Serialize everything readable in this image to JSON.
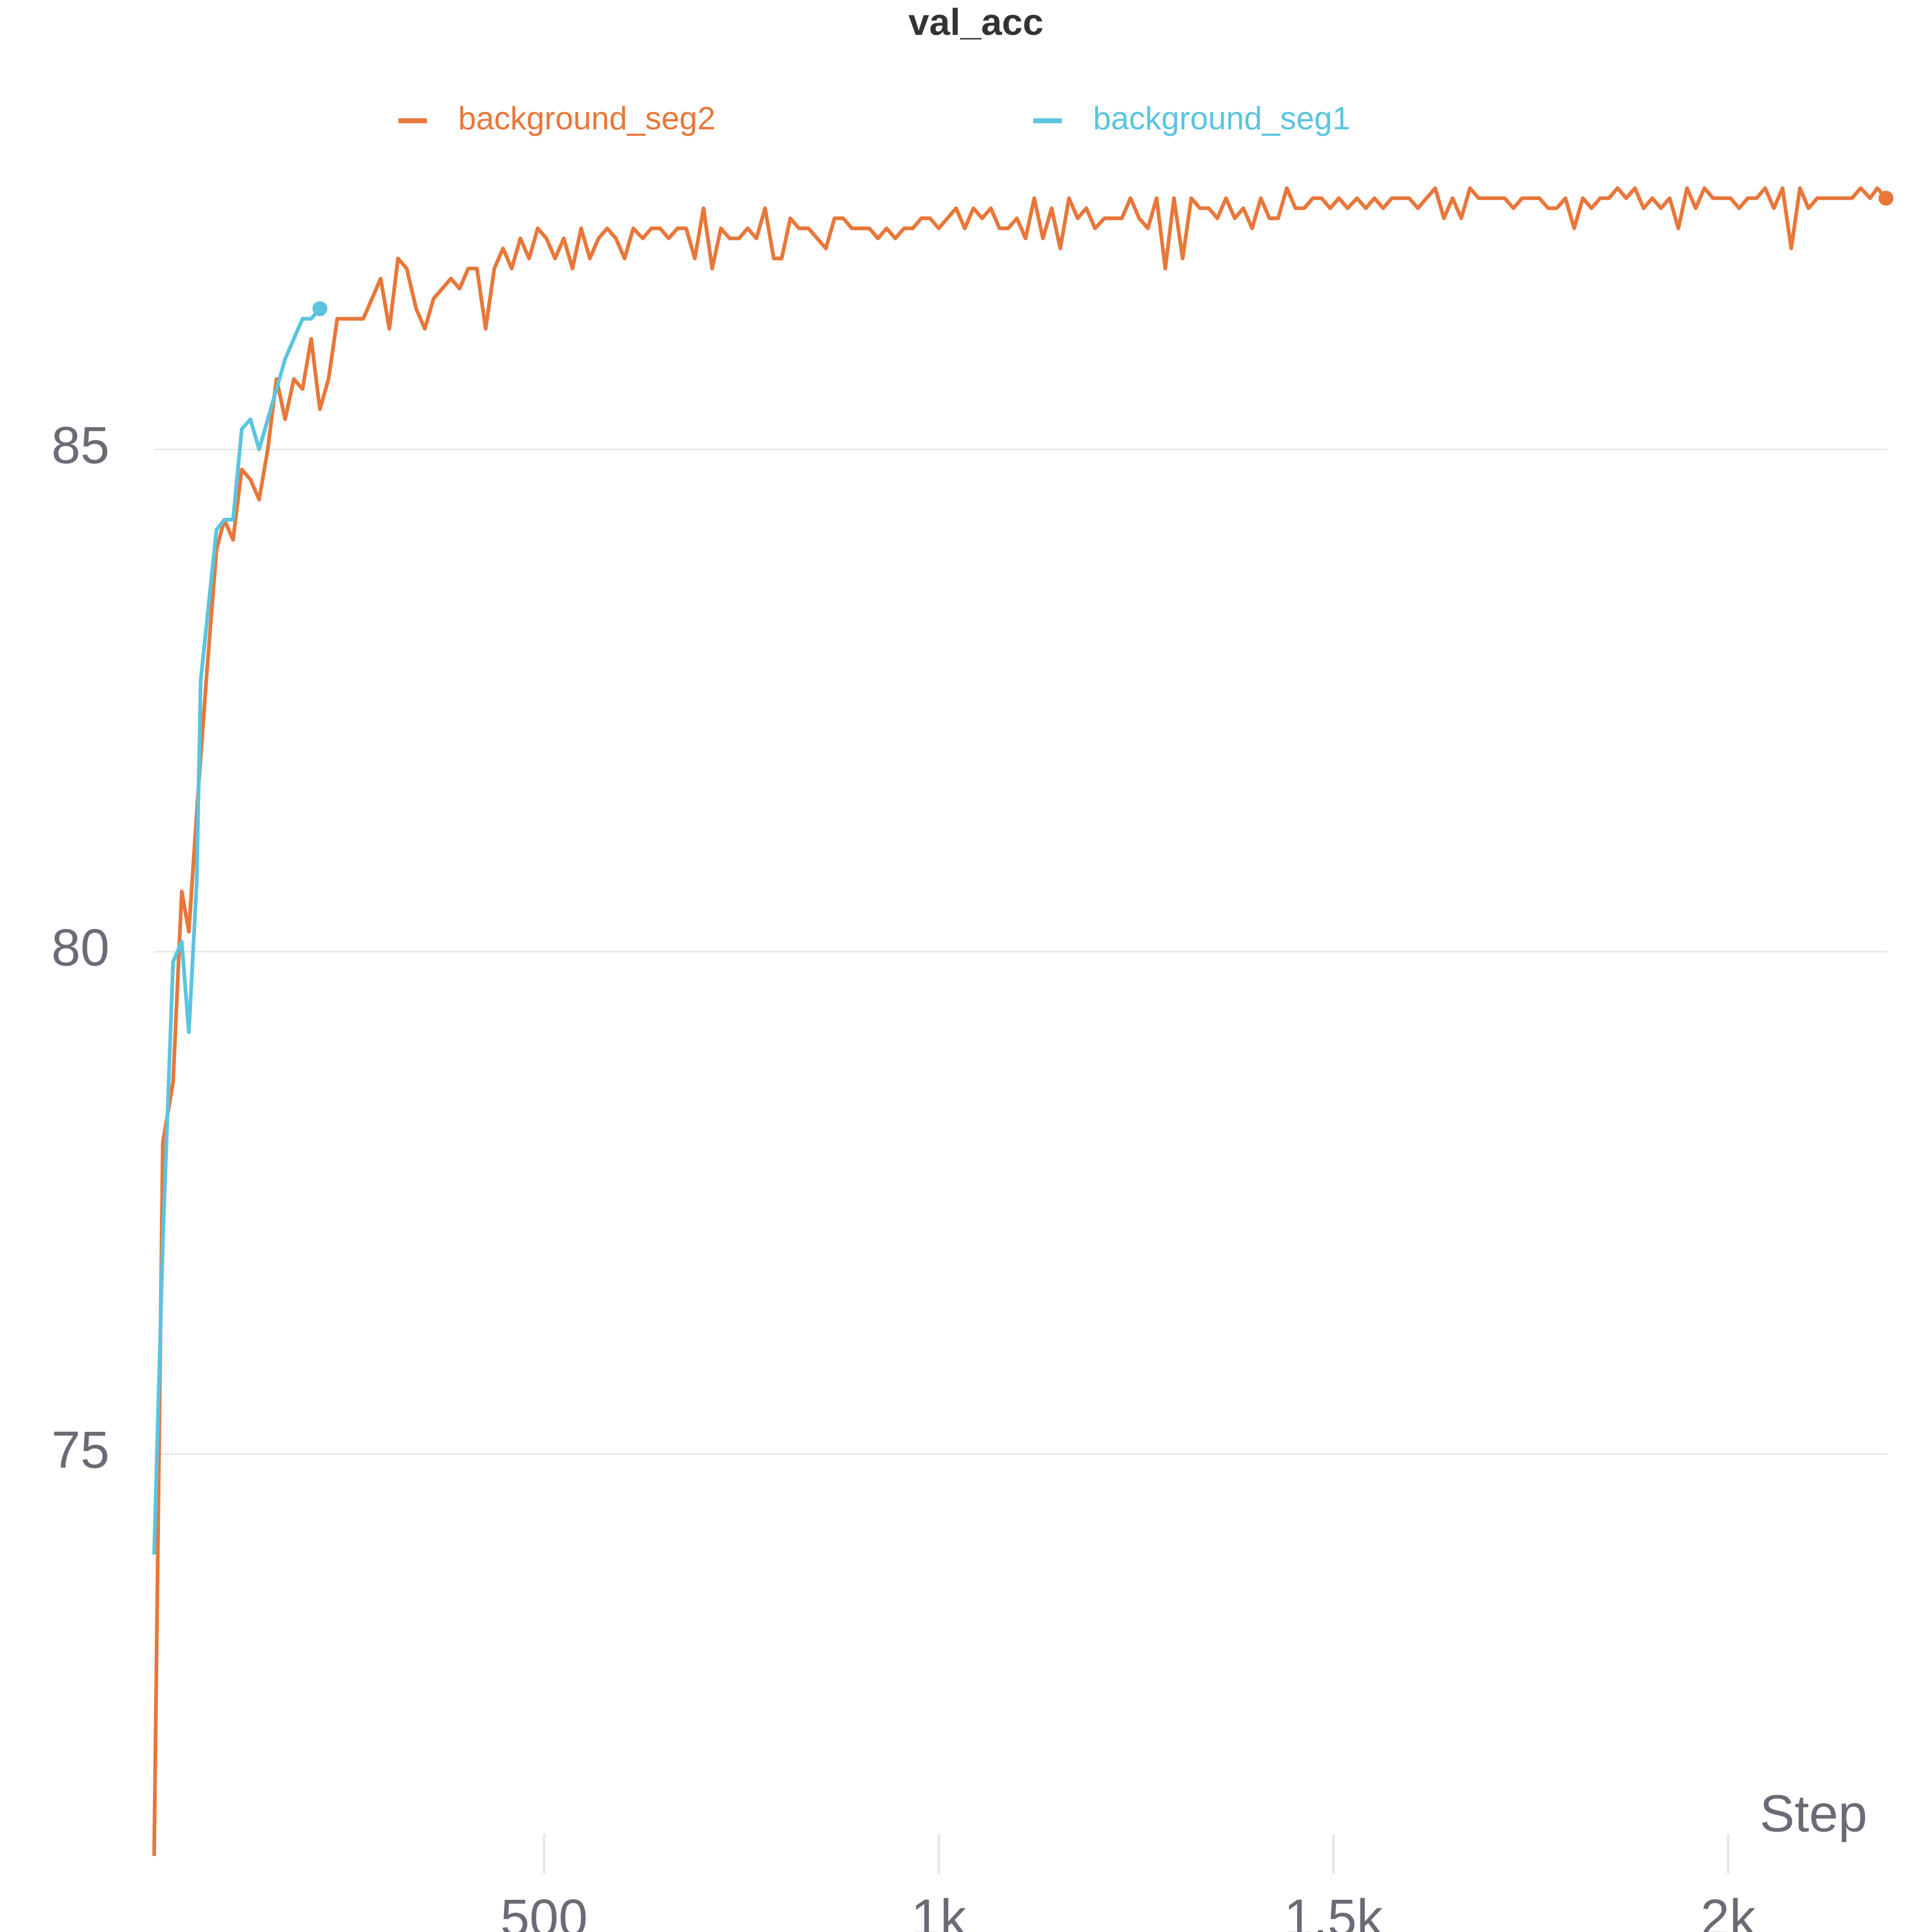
{
  "chart_data": {
    "type": "line",
    "title": "val_acc",
    "x_label": "Step",
    "xlim": [
      0,
      2200
    ],
    "ylim": [
      70.9,
      87.8
    ],
    "xticks": [
      500,
      {
        "value": 1000,
        "label": "1k"
      },
      {
        "value": 1500,
        "label": "1.5k"
      },
      {
        "value": 2000,
        "label": "2k"
      }
    ],
    "yticks": [
      75,
      80,
      85
    ],
    "grid": true,
    "series": [
      {
        "name": "background_seg2",
        "color": "#e8773a",
        "x": [
          6,
          17,
          30,
          41,
          50,
          61,
          73,
          85,
          95,
          106,
          117,
          128,
          139,
          150,
          161,
          172,
          183,
          194,
          205,
          216,
          227,
          238,
          260,
          271,
          282,
          293,
          304,
          315,
          326,
          338,
          349,
          360,
          371,
          382,
          393,
          404,
          415,
          426,
          437,
          448,
          459,
          470,
          481,
          492,
          503,
          514,
          525,
          536,
          547,
          558,
          569,
          580,
          591,
          602,
          613,
          625,
          636,
          647,
          658,
          669,
          680,
          691,
          702,
          713,
          724,
          735,
          747,
          758,
          769,
          780,
          791,
          801,
          812,
          823,
          835,
          846,
          857,
          868,
          879,
          890,
          901,
          912,
          923,
          934,
          945,
          956,
          967,
          978,
          989,
          1000,
          1011,
          1022,
          1033,
          1044,
          1055,
          1066,
          1077,
          1088,
          1099,
          1110,
          1121,
          1132,
          1143,
          1154,
          1165,
          1176,
          1187,
          1198,
          1210,
          1221,
          1232,
          1243,
          1254,
          1265,
          1276,
          1287,
          1298,
          1309,
          1320,
          1331,
          1342,
          1353,
          1364,
          1375,
          1386,
          1397,
          1408,
          1419,
          1430,
          1441,
          1452,
          1463,
          1474,
          1485,
          1496,
          1507,
          1518,
          1530,
          1541,
          1552,
          1563,
          1574,
          1585,
          1596,
          1607,
          1618,
          1629,
          1640,
          1651,
          1662,
          1673,
          1684,
          1695,
          1706,
          1717,
          1728,
          1739,
          1750,
          1761,
          1772,
          1783,
          1794,
          1805,
          1816,
          1827,
          1838,
          1849,
          1860,
          1871,
          1882,
          1893,
          1904,
          1915,
          1926,
          1937,
          1948,
          1959,
          1970,
          1981,
          1992,
          2003,
          2014,
          2025,
          2036,
          2047,
          2058,
          2069,
          2080,
          2091,
          2102,
          2113,
          2124,
          2135,
          2146,
          2157,
          2168,
          2180,
          2189,
          2200
        ],
        "values": [
          71.0,
          78.1,
          78.7,
          80.6,
          80.2,
          81.5,
          82.8,
          84.0,
          84.3,
          84.1,
          84.8,
          84.7,
          84.5,
          85.0,
          85.7,
          85.3,
          85.7,
          85.6,
          86.1,
          85.4,
          85.7,
          86.3,
          86.3,
          86.3,
          86.5,
          86.7,
          86.2,
          86.9,
          86.8,
          86.4,
          86.2,
          86.5,
          86.6,
          86.7,
          86.6,
          86.8,
          86.8,
          86.2,
          86.8,
          87.0,
          86.8,
          87.1,
          86.9,
          87.2,
          87.1,
          86.9,
          87.1,
          86.8,
          87.2,
          86.9,
          87.1,
          87.2,
          87.1,
          86.9,
          87.2,
          87.1,
          87.2,
          87.2,
          87.1,
          87.2,
          87.2,
          86.9,
          87.4,
          86.8,
          87.2,
          87.1,
          87.1,
          87.2,
          87.1,
          87.4,
          86.9,
          86.9,
          87.3,
          87.2,
          87.2,
          87.1,
          87.0,
          87.3,
          87.3,
          87.2,
          87.2,
          87.2,
          87.1,
          87.2,
          87.1,
          87.2,
          87.2,
          87.3,
          87.3,
          87.2,
          87.3,
          87.4,
          87.2,
          87.4,
          87.3,
          87.4,
          87.2,
          87.2,
          87.3,
          87.1,
          87.5,
          87.1,
          87.4,
          87.0,
          87.5,
          87.3,
          87.4,
          87.2,
          87.3,
          87.3,
          87.3,
          87.5,
          87.3,
          87.2,
          87.5,
          86.8,
          87.5,
          86.9,
          87.5,
          87.4,
          87.4,
          87.3,
          87.5,
          87.3,
          87.4,
          87.2,
          87.5,
          87.3,
          87.3,
          87.6,
          87.4,
          87.4,
          87.5,
          87.5,
          87.4,
          87.5,
          87.4,
          87.5,
          87.4,
          87.5,
          87.4,
          87.5,
          87.5,
          87.5,
          87.4,
          87.5,
          87.6,
          87.3,
          87.5,
          87.3,
          87.6,
          87.5,
          87.5,
          87.5,
          87.5,
          87.4,
          87.5,
          87.5,
          87.5,
          87.4,
          87.4,
          87.5,
          87.2,
          87.5,
          87.4,
          87.5,
          87.5,
          87.6,
          87.5,
          87.6,
          87.4,
          87.5,
          87.4,
          87.5,
          87.2,
          87.6,
          87.4,
          87.6,
          87.5,
          87.5,
          87.5,
          87.4,
          87.5,
          87.5,
          87.6,
          87.4,
          87.6,
          87.0,
          87.6,
          87.4,
          87.5,
          87.5,
          87.5,
          87.5,
          87.5,
          87.6,
          87.5,
          87.6,
          87.5
        ]
      },
      {
        "name": "background_seg1",
        "color": "#5bc4df",
        "x": [
          6,
          17,
          30,
          41,
          50,
          60,
          65,
          85,
          95,
          106,
          117,
          128,
          139,
          150,
          161,
          172,
          183,
          194,
          205,
          216
        ],
        "values": [
          74.0,
          77.1,
          79.9,
          80.1,
          79.2,
          80.7,
          82.7,
          84.2,
          84.3,
          84.3,
          85.2,
          85.3,
          85.0,
          85.3,
          85.6,
          85.9,
          86.1,
          86.3,
          86.3,
          86.4
        ]
      }
    ]
  }
}
